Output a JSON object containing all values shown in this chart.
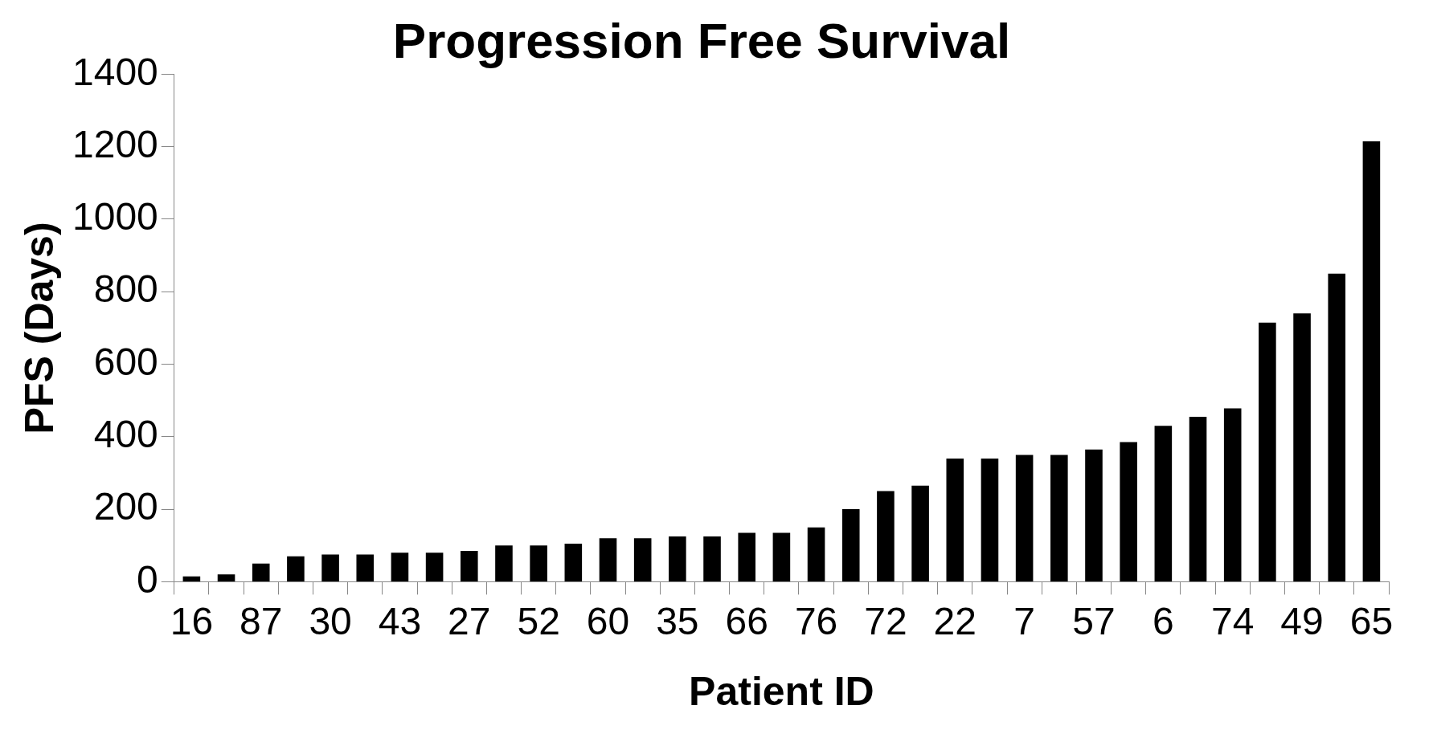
{
  "chart_data": {
    "type": "bar",
    "title": "Progression Free Survival",
    "xlabel": "Patient ID",
    "ylabel": "PFS (Days)",
    "categories": [
      "16",
      null,
      "87",
      null,
      "30",
      null,
      "43",
      null,
      "27",
      null,
      "52",
      null,
      "60",
      null,
      "35",
      null,
      "66",
      null,
      "76",
      null,
      "72",
      null,
      "22",
      null,
      "7",
      null,
      "57",
      null,
      "6",
      null,
      "74",
      null,
      "49",
      null,
      "65"
    ],
    "values": [
      15,
      20,
      50,
      70,
      75,
      75,
      80,
      80,
      85,
      100,
      100,
      105,
      120,
      120,
      125,
      125,
      135,
      135,
      150,
      200,
      250,
      265,
      340,
      340,
      350,
      350,
      365,
      385,
      430,
      455,
      478,
      715,
      740,
      850,
      1215
    ],
    "color": "#000000",
    "ylim": [
      0,
      1400
    ],
    "yticks": [
      0,
      200,
      400,
      600,
      800,
      1000,
      1200,
      1400
    ],
    "grid": false,
    "legend": false
  }
}
